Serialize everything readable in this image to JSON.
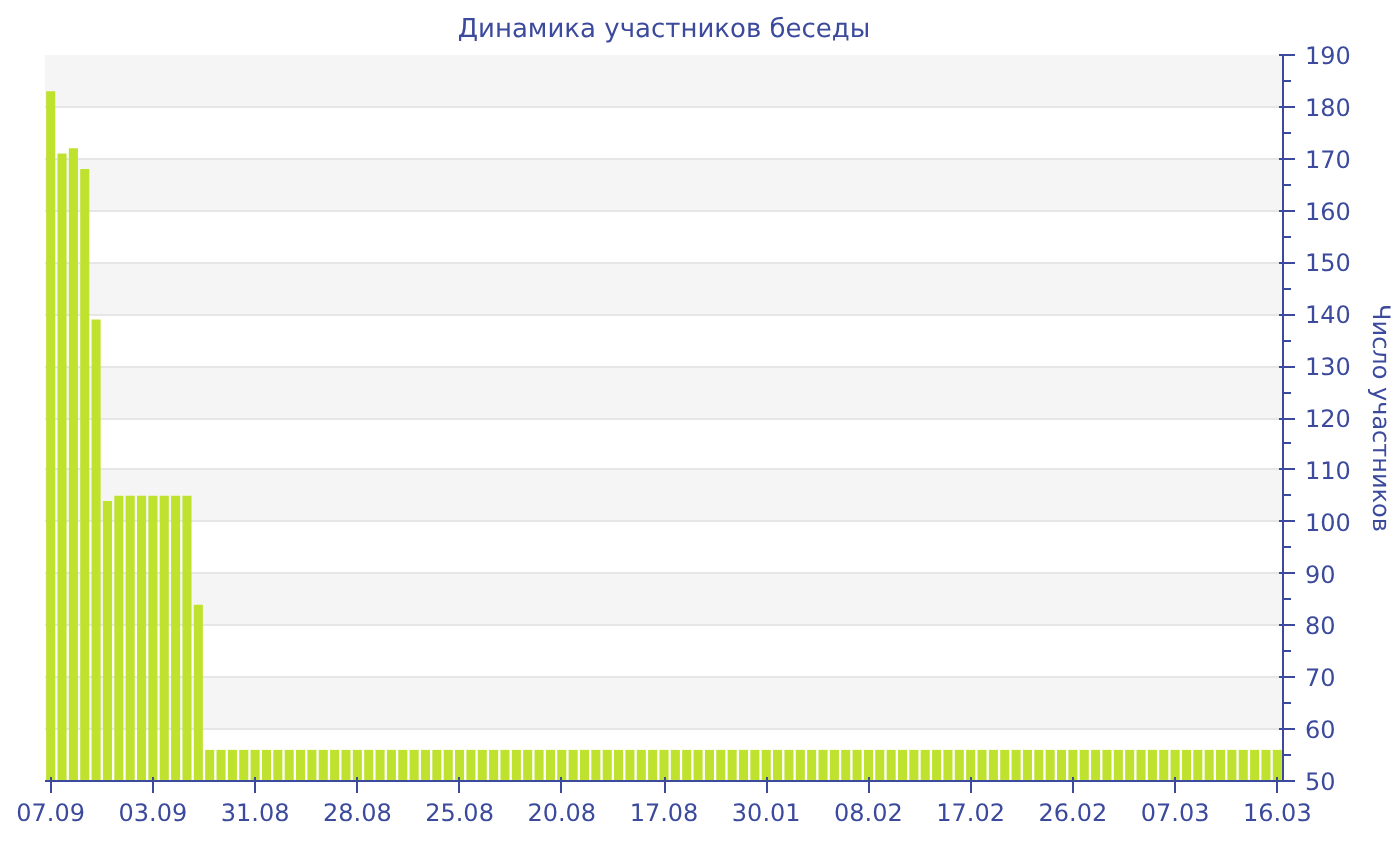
{
  "chart_data": {
    "type": "bar",
    "title": "Динамика участников беседы",
    "ylabel": "Число участников",
    "categories": [
      "07.09",
      null,
      null,
      null,
      null,
      null,
      null,
      null,
      null,
      "03.09",
      null,
      null,
      null,
      null,
      null,
      null,
      null,
      null,
      "31.08",
      null,
      null,
      null,
      null,
      null,
      null,
      null,
      null,
      "28.08",
      null,
      null,
      null,
      null,
      null,
      null,
      null,
      null,
      "25.08",
      null,
      null,
      null,
      null,
      null,
      null,
      null,
      null,
      "20.08",
      null,
      null,
      null,
      null,
      null,
      null,
      null,
      null,
      "17.08",
      null,
      null,
      null,
      null,
      null,
      null,
      null,
      null,
      "30.01",
      null,
      null,
      null,
      null,
      null,
      null,
      null,
      null,
      "08.02",
      null,
      null,
      null,
      null,
      null,
      null,
      null,
      null,
      "17.02",
      null,
      null,
      null,
      null,
      null,
      null,
      null,
      null,
      "26.02",
      null,
      null,
      null,
      null,
      null,
      null,
      null,
      null,
      "07.03",
      null,
      null,
      null,
      null,
      null,
      null,
      null,
      null,
      "16.03"
    ],
    "values": [
      183,
      171,
      172,
      168,
      139,
      104,
      105,
      105,
      105,
      105,
      105,
      105,
      105,
      84,
      56,
      56,
      56,
      56,
      56,
      56,
      56,
      56,
      56,
      56,
      56,
      56,
      56,
      56,
      56,
      56,
      56,
      56,
      56,
      56,
      56,
      56,
      56,
      56,
      56,
      56,
      56,
      56,
      56,
      56,
      56,
      56,
      56,
      56,
      56,
      56,
      56,
      56,
      56,
      56,
      56,
      56,
      56,
      56,
      56,
      56,
      56,
      56,
      56,
      56,
      56,
      56,
      56,
      56,
      56,
      56,
      56,
      56,
      56,
      56,
      56,
      56,
      56,
      56,
      56,
      56,
      56,
      56,
      56,
      56,
      56,
      56,
      56,
      56,
      56,
      56,
      56,
      56,
      56,
      56,
      56,
      56,
      56,
      56,
      56,
      56,
      56,
      56,
      56,
      56,
      56,
      56,
      56,
      56,
      56
    ],
    "color": "#bfe22f",
    "ylim": [
      50,
      190
    ],
    "yticks": [
      50,
      60,
      70,
      80,
      90,
      100,
      110,
      120,
      130,
      140,
      150,
      160,
      170,
      180,
      190
    ],
    "grid": "y"
  }
}
